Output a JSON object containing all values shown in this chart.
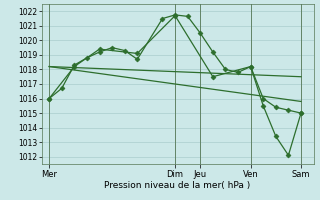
{
  "bg_color": "#cce8e8",
  "grid_color": "#aacece",
  "line_color": "#2d6e2d",
  "xlabel": "Pression niveau de la mer( hPa )",
  "ylim": [
    1011.5,
    1022.5
  ],
  "yticks": [
    1012,
    1013,
    1014,
    1015,
    1016,
    1017,
    1018,
    1019,
    1020,
    1021,
    1022
  ],
  "day_labels": [
    "Mer",
    "Dim",
    "Jeu",
    "Ven",
    "Sam"
  ],
  "day_positions": [
    0,
    5.0,
    6.0,
    8.0,
    10.0
  ],
  "xlim": [
    -0.3,
    10.5
  ],
  "series1_x": [
    0,
    0.5,
    1.0,
    1.5,
    2.0,
    2.5,
    3.0,
    3.5,
    4.5,
    5.0,
    5.5,
    6.0,
    6.5,
    7.0,
    7.5,
    8.0,
    8.5,
    9.0,
    9.5,
    10.0
  ],
  "series1_y": [
    1016.0,
    1016.7,
    1018.3,
    1018.8,
    1019.2,
    1019.5,
    1019.3,
    1018.7,
    1021.5,
    1021.75,
    1021.65,
    1020.5,
    1019.2,
    1018.0,
    1017.8,
    1018.2,
    1016.0,
    1015.4,
    1015.2,
    1015.0
  ],
  "series2_x": [
    0,
    1.0,
    2.0,
    3.5,
    5.0,
    6.5,
    8.0,
    8.5,
    9.0,
    9.5,
    10.0
  ],
  "series2_y": [
    1016.0,
    1018.2,
    1019.4,
    1019.1,
    1021.7,
    1017.5,
    1018.2,
    1015.5,
    1013.4,
    1012.1,
    1015.0
  ],
  "series3_x": [
    0,
    10.0
  ],
  "series3_y": [
    1018.2,
    1015.8
  ],
  "series4_x": [
    0,
    10.0
  ],
  "series4_y": [
    1018.2,
    1017.5
  ]
}
